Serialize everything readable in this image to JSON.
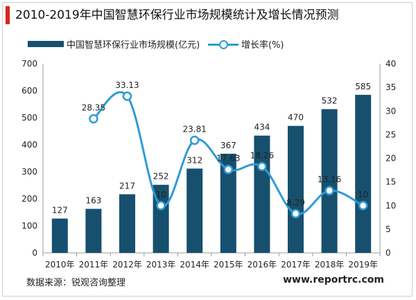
{
  "header": {
    "title": "2010-2019年中国智慧环保行业市场规模统计及增长情况预测"
  },
  "legend": {
    "bar_label": "中国智慧环保行业市场规模(亿元)",
    "line_label": "增长率(%)"
  },
  "footer": {
    "source": "数据来源：锐观咨询整理",
    "site": "www.reportrc.com"
  },
  "colors": {
    "bar": "#17506e",
    "line": "#2e9bd6",
    "title_accent": "#d9241b"
  },
  "chart_data": {
    "type": "bar",
    "categories": [
      "2010年",
      "2011年",
      "2012年",
      "2013年",
      "2014年",
      "2015年",
      "2016年",
      "2017年",
      "2018年",
      "2019年"
    ],
    "series": [
      {
        "name": "中国智慧环保行业市场规模(亿元)",
        "type": "bar",
        "axis": "left",
        "values": [
          127,
          163,
          217,
          252,
          312,
          367,
          434,
          470,
          532,
          585
        ],
        "labels": [
          "127",
          "163",
          "217",
          "252",
          "312",
          "367",
          "434",
          "470",
          "532",
          "585"
        ]
      },
      {
        "name": "增长率(%)",
        "type": "line",
        "axis": "right",
        "values": [
          null,
          28.35,
          33.13,
          10,
          23.81,
          17.63,
          18.26,
          8.29,
          13.16,
          10
        ],
        "labels": [
          "",
          "28.35",
          "33.13",
          "10",
          "23.81",
          "17.63",
          "18.26",
          "8.29",
          "13.16",
          "10"
        ]
      }
    ],
    "y_left": {
      "lim": [
        0,
        700
      ],
      "ticks": [
        0,
        100,
        200,
        300,
        400,
        500,
        600,
        700
      ]
    },
    "y_right": {
      "lim": [
        0,
        40
      ],
      "ticks": [
        0,
        5,
        10,
        15,
        20,
        25,
        30,
        35,
        40
      ]
    },
    "grid": false,
    "legend_position": "top"
  }
}
